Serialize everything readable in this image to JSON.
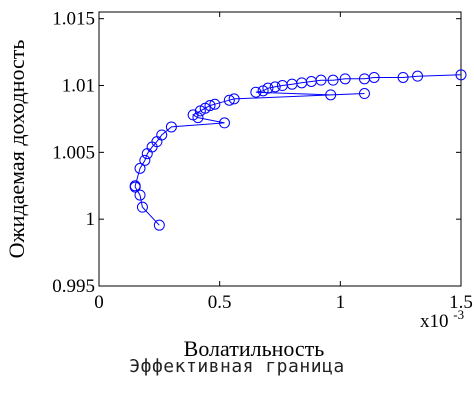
{
  "caption": "Эффективная граница",
  "chart_data": {
    "type": "line",
    "xlabel": "Волатильность",
    "ylabel": "Ожидаемая доходность",
    "x_multiplier_label": "x10",
    "x_multiplier_exponent": "-3",
    "xlim": [
      0,
      0.0015
    ],
    "ylim": [
      0.995,
      1.0155
    ],
    "x_ticks": [
      0,
      0.0005,
      0.001,
      0.0015
    ],
    "x_tick_labels": [
      "0",
      "0.5",
      "1",
      "1.5"
    ],
    "y_ticks": [
      0.995,
      1.0,
      1.005,
      1.01,
      1.015
    ],
    "y_tick_labels": [
      "0.995",
      "1",
      "1.005",
      "1.01",
      "1.015"
    ],
    "grid": false,
    "color": "#0000ff",
    "series": [
      {
        "marker": "circle",
        "x": [
          0.00025,
          0.00018,
          0.00017,
          0.00015,
          0.00015,
          0.00017,
          0.00019,
          0.0002,
          0.00022,
          0.00024,
          0.00026,
          0.0003,
          0.00052,
          0.00041,
          0.00039,
          0.00042,
          0.00044,
          0.00046,
          0.00048,
          0.00054,
          0.00056,
          0.0011,
          0.00096,
          0.00065,
          0.00068,
          0.0007,
          0.00073,
          0.00076,
          0.0008,
          0.00084,
          0.00088,
          0.00092,
          0.00097,
          0.00102,
          0.0011,
          0.00114,
          0.00126,
          0.00132,
          0.0015
        ],
        "y": [
          0.99955,
          1.0009,
          1.0018,
          1.0024,
          1.0025,
          1.0038,
          1.0044,
          1.0049,
          1.0054,
          1.0058,
          1.0063,
          1.0069,
          1.0072,
          1.0076,
          1.0078,
          1.0081,
          1.0083,
          1.0085,
          1.0086,
          1.0089,
          1.009,
          1.0094,
          1.0093,
          1.0095,
          1.0096,
          1.0098,
          1.0099,
          1.01,
          1.0101,
          1.0102,
          1.0103,
          1.0104,
          1.0104,
          1.0105,
          1.0105,
          1.0106,
          1.0106,
          1.0107,
          1.0108
        ]
      }
    ]
  }
}
